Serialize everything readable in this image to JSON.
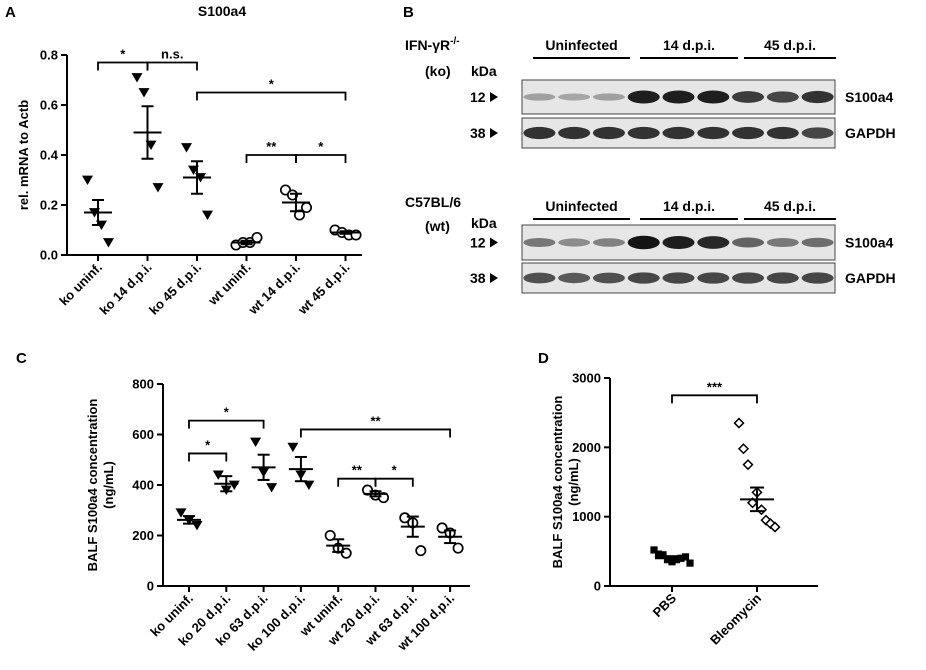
{
  "figure": {
    "panels": [
      "A",
      "B",
      "C",
      "D"
    ]
  },
  "chart_data": [
    {
      "panel": "A",
      "type": "scatter",
      "title": "S100a4",
      "ylabel": "rel. mRNA to Actb",
      "ylim": [
        0,
        0.8
      ],
      "yticks": [
        "0.0",
        "0.2",
        "0.4",
        "0.6",
        "0.8"
      ],
      "categories": [
        "ko uninf.",
        "ko 14 d.p.i.",
        "ko 45 d.p.i.",
        "wt uninf.",
        "wt 14 d.p.i.",
        "wt 45 d.p.i."
      ],
      "markers": [
        "triangle-down",
        "triangle-down",
        "triangle-down",
        "circle-open",
        "circle-open",
        "circle-open"
      ],
      "points": [
        [
          0.3,
          0.17,
          0.12,
          0.05
        ],
        [
          0.71,
          0.65,
          0.44,
          0.27
        ],
        [
          0.43,
          0.34,
          0.31,
          0.16
        ],
        [
          0.04,
          0.05,
          0.05,
          0.07
        ],
        [
          0.26,
          0.24,
          0.16,
          0.19
        ],
        [
          0.1,
          0.09,
          0.08,
          0.08
        ]
      ],
      "mean": [
        0.17,
        0.49,
        0.31,
        0.05,
        0.21,
        0.09
      ],
      "sem": [
        0.05,
        0.105,
        0.065,
        0.007,
        0.035,
        0.005
      ],
      "significance": [
        {
          "from": 0,
          "to": 1,
          "y": 0.77,
          "label": "*"
        },
        {
          "from": 1,
          "to": 2,
          "y": 0.77,
          "label": "n.s."
        },
        {
          "from": 2,
          "to": 5,
          "y": 0.65,
          "label": "*"
        },
        {
          "from": 3,
          "to": 4,
          "y": 0.4,
          "label": "**"
        },
        {
          "from": 4,
          "to": 5,
          "y": 0.4,
          "label": "*"
        }
      ]
    },
    {
      "panel": "C",
      "type": "scatter",
      "ylabel": "BALF S100a4 concentration",
      "ylabel2": "(ng/mL)",
      "ylim": [
        0,
        800
      ],
      "yticks": [
        "0",
        "200",
        "400",
        "600",
        "800"
      ],
      "categories": [
        "ko uninf.",
        "ko 20 d.p.i.",
        "ko 63 d.p.i.",
        "ko 100 d.p.i.",
        "wt uninf.",
        "wt 20 d.p.i.",
        "wt 63 d.p.i.",
        "wt 100 d.p.i."
      ],
      "markers": [
        "triangle-down",
        "triangle-down",
        "triangle-down",
        "triangle-down",
        "circle-open",
        "circle-open",
        "circle-open",
        "circle-open"
      ],
      "points": [
        [
          290,
          260,
          240
        ],
        [
          440,
          380,
          400
        ],
        [
          570,
          450,
          390
        ],
        [
          550,
          440,
          400
        ],
        [
          200,
          150,
          130
        ],
        [
          380,
          360,
          350
        ],
        [
          270,
          250,
          140
        ],
        [
          230,
          210,
          150
        ]
      ],
      "mean": [
        262,
        405,
        470,
        463,
        160,
        365,
        235,
        195
      ],
      "sem": [
        15,
        30,
        50,
        48,
        25,
        10,
        40,
        25
      ],
      "significance": [
        {
          "from": 0,
          "to": 2,
          "y": 655,
          "label": "*"
        },
        {
          "from": 0,
          "to": 1,
          "y": 525,
          "label": "*"
        },
        {
          "from": 3,
          "to": 7,
          "y": 620,
          "label": "**"
        },
        {
          "from": 4,
          "to": 5,
          "y": 425,
          "label": "**"
        },
        {
          "from": 5,
          "to": 6,
          "y": 425,
          "label": "*"
        }
      ]
    },
    {
      "panel": "D",
      "type": "scatter",
      "ylabel": "BALF S100a4 concentration",
      "ylabel2": "(ng/mL)",
      "ylim": [
        0,
        3000
      ],
      "yticks": [
        "0",
        "1000",
        "2000",
        "3000"
      ],
      "categories": [
        "PBS",
        "Bleomycin"
      ],
      "markers": [
        "square-filled",
        "diamond-open"
      ],
      "points": [
        [
          520,
          460,
          450,
          380,
          350,
          380,
          400,
          420,
          330
        ],
        [
          2350,
          1980,
          1750,
          1200,
          1350,
          1100,
          950,
          900,
          850
        ]
      ],
      "mean": [
        400,
        1250
      ],
      "sem": [
        30,
        170
      ],
      "significance": [
        {
          "from": 0,
          "to": 1,
          "y": 2750,
          "label": "***"
        }
      ]
    }
  ],
  "blot": {
    "panel": "B",
    "groups": [
      {
        "line1": "IFN-γR",
        "superscript": "-/-",
        "line2": "(ko)",
        "kda_label": "kDa",
        "headers": [
          "Uninfected",
          "14 d.p.i.",
          "45 d.p.i."
        ],
        "bands": [
          {
            "kda": "12",
            "protein": "S100a4",
            "intensity": [
              0.25,
              0.22,
              0.25,
              0.9,
              0.9,
              0.9,
              0.75,
              0.7,
              0.8
            ]
          },
          {
            "kda": "38",
            "protein": "GAPDH",
            "intensity": [
              0.8,
              0.8,
              0.8,
              0.8,
              0.8,
              0.8,
              0.8,
              0.8,
              0.7
            ]
          }
        ]
      },
      {
        "line1": "C57BL/6",
        "superscript": "",
        "line2": "(wt)",
        "kda_label": "kDa",
        "headers": [
          "Uninfected",
          "14 d.p.i.",
          "45 d.p.i."
        ],
        "bands": [
          {
            "kda": "12",
            "protein": "S100a4",
            "intensity": [
              0.45,
              0.35,
              0.4,
              0.95,
              0.9,
              0.85,
              0.55,
              0.45,
              0.5
            ]
          },
          {
            "kda": "38",
            "protein": "GAPDH",
            "intensity": [
              0.65,
              0.6,
              0.65,
              0.7,
              0.7,
              0.7,
              0.7,
              0.7,
              0.7
            ]
          }
        ]
      }
    ]
  }
}
